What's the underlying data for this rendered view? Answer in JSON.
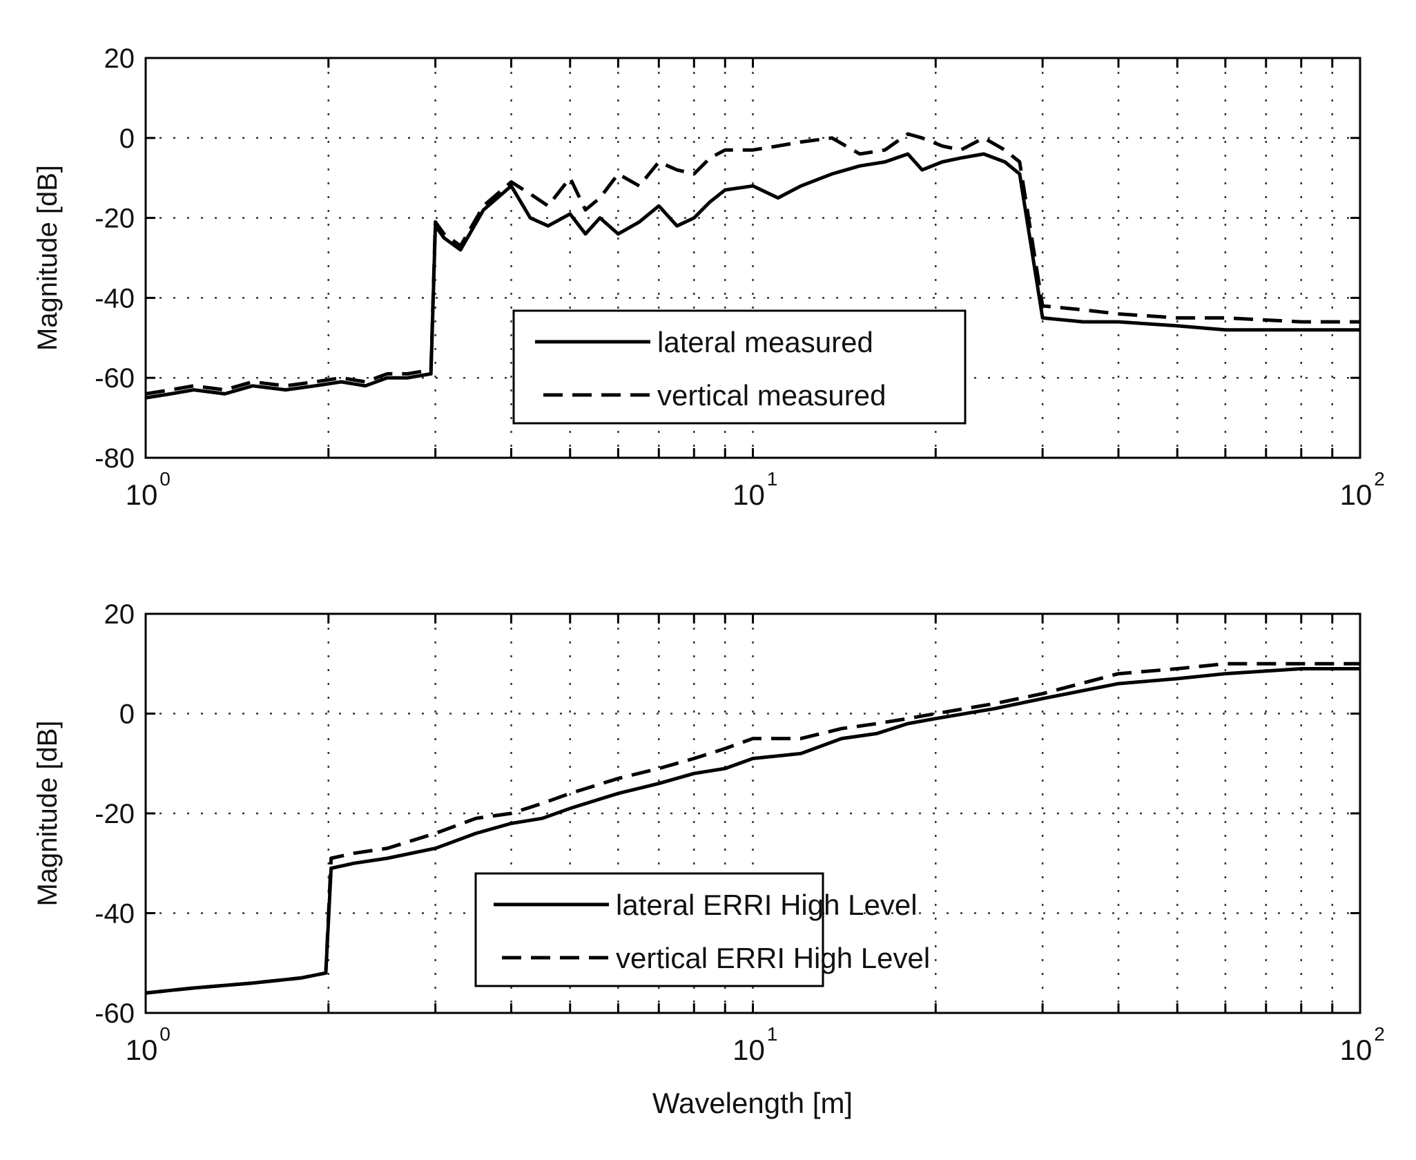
{
  "figure": {
    "background": "#ffffff",
    "line_color": "#000000",
    "grid_color": "#333333",
    "xlabel": "Wavelength [m]"
  },
  "chart_data": [
    {
      "type": "line",
      "title": "",
      "xlabel": "",
      "ylabel": "Magnitude [dB]",
      "xscale": "log",
      "xlim": [
        1,
        100
      ],
      "ylim": [
        -80,
        20
      ],
      "grid": true,
      "x_tick_labels": [
        {
          "base": "10",
          "exp": "0",
          "value": 1
        },
        {
          "base": "10",
          "exp": "1",
          "value": 10
        },
        {
          "base": "10",
          "exp": "2",
          "value": 100
        }
      ],
      "y_ticks": [
        20,
        0,
        -20,
        -40,
        -60,
        -80
      ],
      "y_tick_labels": [
        "20",
        "0",
        "-20",
        "-40",
        "-60",
        "-80"
      ],
      "legend": {
        "position": "center-lower",
        "entries": [
          "lateral measured",
          "vertical measured"
        ]
      },
      "series": [
        {
          "name": "lateral measured",
          "style": "solid",
          "x": [
            1,
            1.1,
            1.2,
            1.35,
            1.5,
            1.7,
            1.9,
            2.1,
            2.3,
            2.5,
            2.7,
            2.95,
            3.0,
            3.1,
            3.3,
            3.6,
            4.0,
            4.3,
            4.6,
            5.0,
            5.3,
            5.6,
            6.0,
            6.5,
            7.0,
            7.5,
            8.0,
            8.5,
            9.0,
            10.0,
            11.0,
            12.0,
            13.5,
            15.0,
            16.5,
            18.0,
            19.0,
            20.5,
            22.0,
            24.0,
            26.0,
            27.5,
            30.0,
            35.0,
            40.0,
            50.0,
            60.0,
            80.0,
            100.0
          ],
          "values": [
            -65,
            -64,
            -63,
            -64,
            -62,
            -63,
            -62,
            -61,
            -62,
            -60,
            -60,
            -59,
            -22,
            -25,
            -28,
            -18,
            -12,
            -20,
            -22,
            -19,
            -24,
            -20,
            -24,
            -21,
            -17,
            -22,
            -20,
            -16,
            -13,
            -12,
            -15,
            -12,
            -9,
            -7,
            -6,
            -4,
            -8,
            -6,
            -5,
            -4,
            -6,
            -9,
            -45,
            -46,
            -46,
            -47,
            -48,
            -48,
            -48
          ]
        },
        {
          "name": "vertical measured",
          "style": "dashed",
          "x": [
            1,
            1.1,
            1.2,
            1.35,
            1.5,
            1.7,
            1.9,
            2.1,
            2.3,
            2.5,
            2.7,
            2.95,
            3.0,
            3.1,
            3.3,
            3.6,
            4.0,
            4.3,
            4.6,
            5.0,
            5.3,
            5.6,
            6.0,
            6.5,
            7.0,
            7.5,
            8.0,
            8.5,
            9.0,
            10.0,
            11.0,
            12.0,
            13.5,
            15.0,
            16.5,
            18.0,
            19.0,
            20.5,
            22.0,
            24.0,
            26.0,
            27.5,
            30.0,
            35.0,
            40.0,
            50.0,
            60.0,
            80.0,
            100.0
          ],
          "values": [
            -64,
            -63,
            -62,
            -63,
            -61,
            -62,
            -61,
            -60,
            -61,
            -59,
            -59,
            -58,
            -21,
            -24,
            -27,
            -17,
            -11,
            -14,
            -17,
            -10,
            -18,
            -15,
            -9,
            -12,
            -6,
            -8,
            -9,
            -5,
            -3,
            -3,
            -2,
            -1,
            0,
            -4,
            -3,
            1,
            0,
            -2,
            -3,
            0,
            -3,
            -6,
            -42,
            -43,
            -44,
            -45,
            -45,
            -46,
            -46
          ]
        }
      ]
    },
    {
      "type": "line",
      "title": "",
      "xlabel": "Wavelength [m]",
      "ylabel": "Magnitude [dB]",
      "xscale": "log",
      "xlim": [
        1,
        100
      ],
      "ylim": [
        -60,
        20
      ],
      "grid": true,
      "x_tick_labels": [
        {
          "base": "10",
          "exp": "0",
          "value": 1
        },
        {
          "base": "10",
          "exp": "1",
          "value": 10
        },
        {
          "base": "10",
          "exp": "2",
          "value": 100
        }
      ],
      "y_ticks": [
        20,
        0,
        -20,
        -40,
        -60
      ],
      "y_tick_labels": [
        "20",
        "0",
        "-20",
        "-40",
        "-60"
      ],
      "legend": {
        "position": "center-lower",
        "entries": [
          "lateral ERRI High Level",
          "vertical ERRI High Level"
        ]
      },
      "series": [
        {
          "name": "lateral ERRI High Level",
          "style": "solid",
          "x": [
            1,
            1.2,
            1.5,
            1.8,
            1.98,
            2.02,
            2.2,
            2.5,
            3.0,
            3.5,
            4.0,
            4.5,
            5.0,
            6.0,
            7.0,
            8.0,
            9.0,
            10.0,
            12.0,
            14.0,
            16.0,
            18.0,
            20.0,
            25.0,
            30.0,
            40.0,
            50.0,
            60.0,
            80.0,
            100.0
          ],
          "values": [
            -56,
            -55,
            -54,
            -53,
            -52,
            -31,
            -30,
            -29,
            -27,
            -24,
            -22,
            -21,
            -19,
            -16,
            -14,
            -12,
            -11,
            -9,
            -8,
            -5,
            -4,
            -2,
            -1,
            1,
            3,
            6,
            7,
            8,
            9,
            9
          ]
        },
        {
          "name": "vertical ERRI High Level",
          "style": "dashed",
          "x": [
            1,
            1.2,
            1.5,
            1.8,
            1.98,
            2.02,
            2.2,
            2.5,
            3.0,
            3.5,
            4.0,
            4.5,
            5.0,
            6.0,
            7.0,
            8.0,
            9.0,
            10.0,
            12.0,
            14.0,
            16.0,
            18.0,
            20.0,
            25.0,
            30.0,
            40.0,
            50.0,
            60.0,
            80.0,
            100.0
          ],
          "values": [
            -56,
            -55,
            -54,
            -53,
            -52,
            -29,
            -28,
            -27,
            -24,
            -21,
            -20,
            -18,
            -16,
            -13,
            -11,
            -9,
            -7,
            -5,
            -5,
            -3,
            -2,
            -1,
            0,
            2,
            4,
            8,
            9,
            10,
            10,
            10
          ]
        }
      ]
    }
  ]
}
